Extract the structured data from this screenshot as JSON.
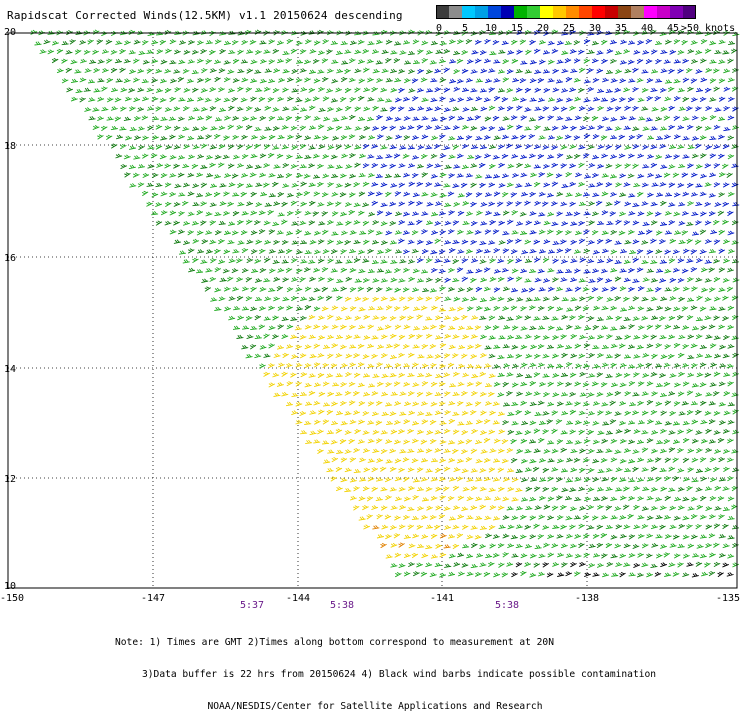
{
  "title": "Rapidscat Corrected Winds(12.5KM) v1.1 20150624 descending",
  "colorbar": {
    "colors": [
      "#3c3c3c",
      "#8c8c8c",
      "#00c8ff",
      "#00a0e6",
      "#0046dc",
      "#0000b4",
      "#00b400",
      "#32cd32",
      "#ffff00",
      "#ffc800",
      "#ff8c00",
      "#ff4600",
      "#ff0000",
      "#c80000",
      "#8b4513",
      "#b08060",
      "#ff00ff",
      "#c800c8",
      "#8000b4",
      "#500080"
    ],
    "labels": [
      "0",
      "5",
      "10",
      "15",
      "20",
      "25",
      "30",
      "35",
      "40",
      "45",
      ">50 knots"
    ]
  },
  "lat_labels": [
    "20",
    "18",
    "16",
    "14",
    "12",
    "10"
  ],
  "lon_labels": [
    "-150",
    "-147",
    "-144",
    "-141",
    "-138",
    "-135"
  ],
  "time_labels": [
    "5:37",
    "5:38",
    "5:38"
  ],
  "notes": {
    "line1": "Note: 1) Times are GMT 2)Times along bottom correspond to measurement at 20N",
    "line2": "3)Data buffer is 22 hrs from 20150624 4) Black wind barbs indicate possible contamination",
    "line3": "NOAA/NESDIS/Center for Satellite Applications and Research"
  },
  "legend_colors": {
    "green": "#1faa1f",
    "blue": "#0018c8",
    "yellow": "#f2d200",
    "orange": "#e08000",
    "black": "#000000"
  }
}
